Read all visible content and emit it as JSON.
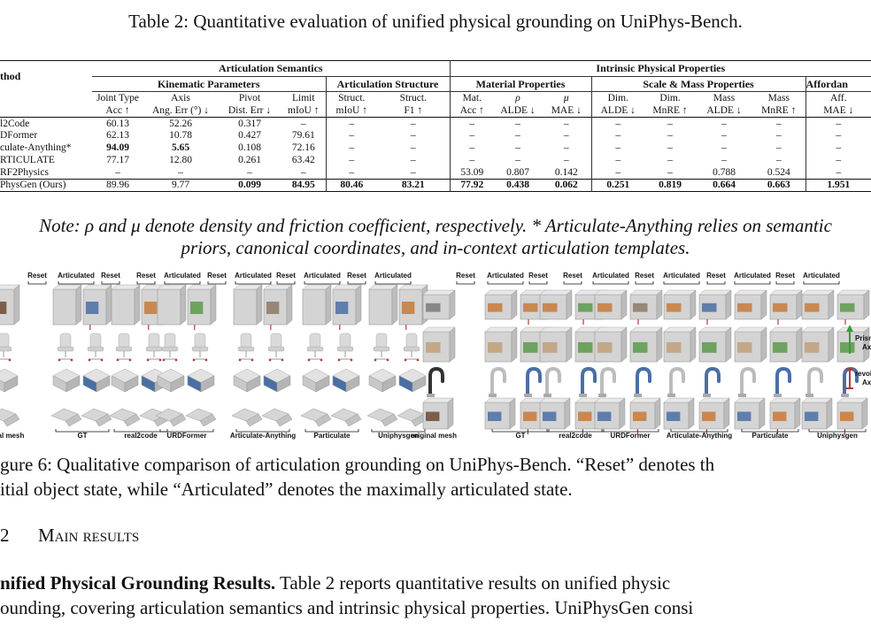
{
  "table_caption": "Table 2: Quantitative evaluation of unified physical grounding on UniPhys-Bench.",
  "header": {
    "method": "thod",
    "group_articulation": "Articulation Semantics",
    "group_intrinsic": "Intrinsic Physical Properties",
    "sub_kinematic": "Kinematic Parameters",
    "sub_structure": "Articulation Structure",
    "sub_material": "Material Properties",
    "sub_scale": "Scale & Mass Properties",
    "sub_affordance": "Affordan",
    "columns": [
      {
        "l1": "Joint Type",
        "l2": "Acc ↑"
      },
      {
        "l1": "Axis",
        "l2": "Ang. Err (°) ↓"
      },
      {
        "l1": "Pivot",
        "l2": "Dist. Err ↓"
      },
      {
        "l1": "Limit",
        "l2": "mIoU ↑"
      },
      {
        "l1": "Struct.",
        "l2": "mIoU ↑"
      },
      {
        "l1": "Struct.",
        "l2": "F1 ↑"
      },
      {
        "l1": "Mat.",
        "l2": "Acc ↑"
      },
      {
        "l1": "ρ",
        "l2": "ALDE ↓"
      },
      {
        "l1": "μ",
        "l2": "MAE ↓"
      },
      {
        "l1": "Dim.",
        "l2": "ALDE ↓"
      },
      {
        "l1": "Dim.",
        "l2": "MnRE ↑"
      },
      {
        "l1": "Mass",
        "l2": "ALDE ↓"
      },
      {
        "l1": "Mass",
        "l2": "MnRE ↑"
      },
      {
        "l1": "Aff.",
        "l2": "MAE ↓"
      }
    ]
  },
  "rows": [
    {
      "method": "l2Code",
      "values": [
        "60.13",
        "52.26",
        "0.317",
        "–",
        "–",
        "–",
        "–",
        "–",
        "–",
        "–",
        "–",
        "–",
        "–",
        "–"
      ]
    },
    {
      "method": "DFormer",
      "values": [
        "62.13",
        "10.78",
        "0.427",
        "79.61",
        "–",
        "–",
        "–",
        "–",
        "–",
        "–",
        "–",
        "–",
        "–",
        "–"
      ]
    },
    {
      "method": "culate-Anything*",
      "values": [
        "94.09",
        "5.65",
        "0.108",
        "72.16",
        "–",
        "–",
        "–",
        "–",
        "–",
        "–",
        "–",
        "–",
        "–",
        "–"
      ]
    },
    {
      "method": "RTICULATE",
      "values": [
        "77.17",
        "12.80",
        "0.261",
        "63.42",
        "–",
        "–",
        "–",
        "–",
        "–",
        "–",
        "–",
        "–",
        "–",
        "–"
      ]
    },
    {
      "method": "RF2Physics",
      "values": [
        "–",
        "–",
        "–",
        "–",
        "–",
        "–",
        "53.09",
        "0.807",
        "0.142",
        "–",
        "–",
        "0.788",
        "0.524",
        "–"
      ]
    }
  ],
  "ours": {
    "method": "PhysGen (Ours)",
    "values": [
      "89.96",
      "9.77",
      "0.099",
      "84.95",
      "80.46",
      "83.21",
      "77.92",
      "0.438",
      "0.062",
      "0.251",
      "0.819",
      "0.664",
      "0.663",
      "1.951"
    ]
  },
  "note_line1": "Note: ρ and μ denote density and friction coefficient, respectively. * Articulate-Anything relies on semantic",
  "note_line2": "priors, canonical coordinates, and in-context articulation templates.",
  "figure": {
    "state_reset": "Reset",
    "state_articulated": "Articulated",
    "left_columns": [
      "nal mesh",
      "GT",
      "real2code",
      "URDFormer",
      "Articulate-Anything",
      "Particulate",
      "Uniphysgen"
    ],
    "right_columns": [
      "original mesh",
      "GT",
      "real2code",
      "URDFormer",
      "Articulate-Anything",
      "Particulate",
      "Uniphysgen"
    ],
    "legend_prismatic": "Prism",
    "legend_prismatic_2": "Axi",
    "legend_revolute": "revol",
    "legend_revolute_2": "Axi",
    "colors": {
      "prismatic": "#3b9a3b",
      "revolute": "#b03a3a",
      "part_blue": "#4a6fa5",
      "part_orange": "#c77a3a",
      "part_green": "#5a9a4a",
      "mesh_gray": "#d4d4d4"
    }
  },
  "fig_caption_line1": "gure 6: Qualitative comparison of articulation grounding on UniPhys-Bench. “Reset” denotes th",
  "fig_caption_line2": "itial object state, while “Articulated” denotes the maximally articulated state.",
  "section_number": "2",
  "section_title": "Main results",
  "para_bold": "nified Physical Grounding Results.",
  "para_text1": " Table 2 reports quantitative results on unified physic",
  "para_text2": "ounding, covering articulation semantics and intrinsic physical properties. UniPhysGen consi"
}
